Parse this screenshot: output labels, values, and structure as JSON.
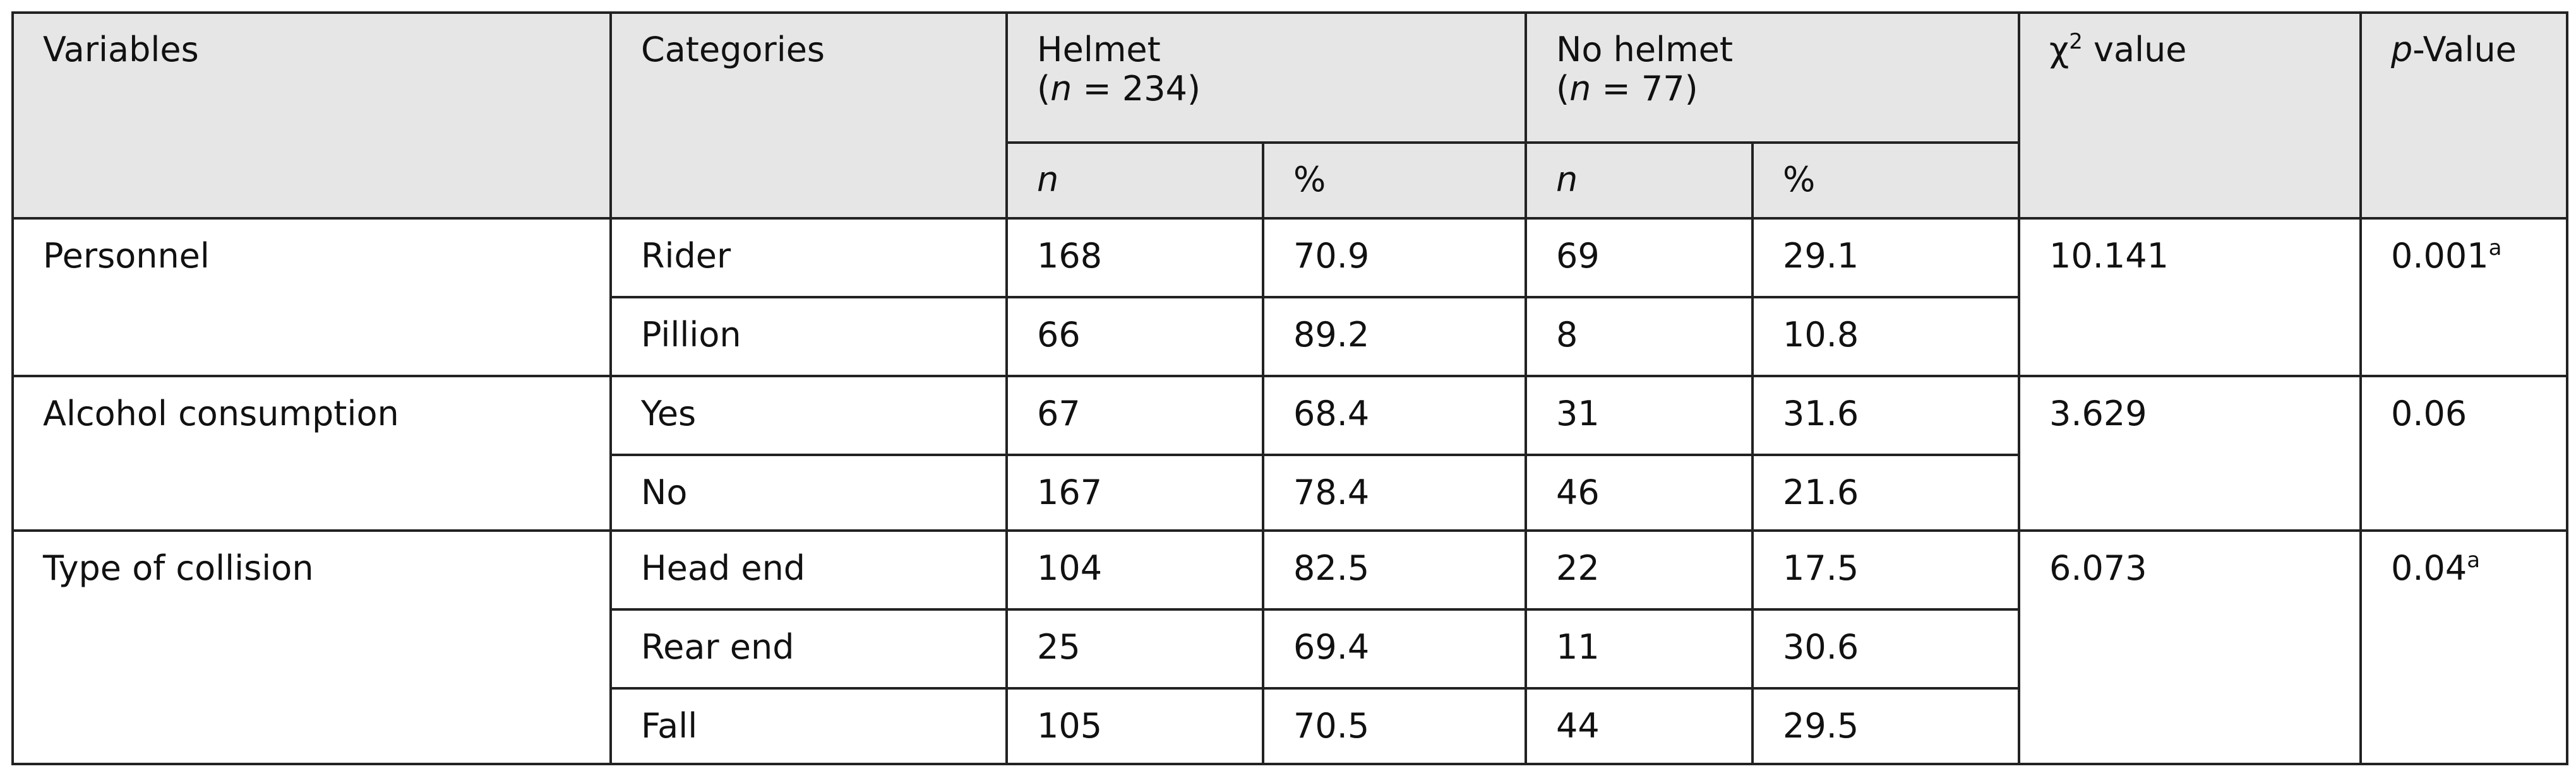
{
  "header": {
    "variables": "Variables",
    "categories": "Categories",
    "helmet": {
      "name": "Helmet",
      "count": [
        "(",
        "n",
        " = 234)"
      ]
    },
    "no_helmet": {
      "name": "No helmet",
      "count": [
        "(",
        "n",
        " = 77)"
      ]
    },
    "n": "n",
    "pct": "%",
    "chi2": {
      "symbol": "χ",
      "sup": "2",
      "text": " value"
    },
    "p_value": {
      "italic": "p",
      "text": "-Value"
    }
  },
  "groups": [
    {
      "variable": "Personnel",
      "chi2": "10.141",
      "p": {
        "value": "0.001",
        "note": "a"
      },
      "rows": [
        {
          "category": "Rider",
          "helmet_n": "168",
          "helmet_pct": "70.9",
          "no_helmet_n": "69",
          "no_helmet_pct": "29.1"
        },
        {
          "category": "Pillion",
          "helmet_n": "66",
          "helmet_pct": "89.2",
          "no_helmet_n": "8",
          "no_helmet_pct": "10.8"
        }
      ]
    },
    {
      "variable": "Alcohol consumption",
      "chi2": "3.629",
      "p": {
        "value": "0.06"
      },
      "rows": [
        {
          "category": "Yes",
          "helmet_n": "67",
          "helmet_pct": "68.4",
          "no_helmet_n": "31",
          "no_helmet_pct": "31.6"
        },
        {
          "category": "No",
          "helmet_n": "167",
          "helmet_pct": "78.4",
          "no_helmet_n": "46",
          "no_helmet_pct": "21.6"
        }
      ]
    },
    {
      "variable": "Type of collision",
      "chi2": "6.073",
      "p": {
        "value": "0.04",
        "note": "a"
      },
      "rows": [
        {
          "category": "Head end",
          "helmet_n": "104",
          "helmet_pct": "82.5",
          "no_helmet_n": "22",
          "no_helmet_pct": "17.5"
        },
        {
          "category": "Rear end",
          "helmet_n": "25",
          "helmet_pct": "69.4",
          "no_helmet_n": "11",
          "no_helmet_pct": "30.6"
        },
        {
          "category": "Fall",
          "helmet_n": "105",
          "helmet_pct": "70.5",
          "no_helmet_n": "44",
          "no_helmet_pct": "29.5"
        }
      ]
    }
  ]
}
